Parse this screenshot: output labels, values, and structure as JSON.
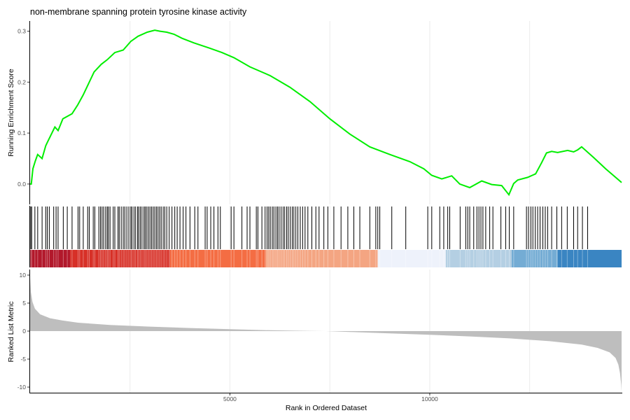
{
  "chart_data": {
    "type": "line",
    "title": "non-membrane spanning protein tyrosine kinase activity",
    "xlabel": "Rank in Ordered Dataset",
    "x_range": [
      0,
      14800
    ],
    "x_ticks": [
      5000,
      10000
    ],
    "x_tick_labels": [
      "5000",
      "10000"
    ],
    "grid": true,
    "es_panel": {
      "ylabel": "Running Enrichment Score",
      "ylim": [
        -0.04,
        0.32
      ],
      "y_ticks": [
        0.0,
        0.1,
        0.2,
        0.3
      ],
      "y_tick_labels": [
        "0.0",
        "0.1",
        "0.2",
        "0.3"
      ],
      "line_color": "#00ee00",
      "x": [
        0,
        30,
        70,
        130,
        190,
        300,
        390,
        420,
        620,
        700,
        820,
        1050,
        1190,
        1330,
        1500,
        1600,
        1780,
        1930,
        2120,
        2330,
        2520,
        2700,
        2930,
        3120,
        3250,
        3420,
        3600,
        3800,
        4100,
        4480,
        4800,
        5100,
        5500,
        6000,
        6500,
        7000,
        7500,
        8000,
        8500,
        9000,
        9500,
        9850,
        10050,
        10300,
        10550,
        10750,
        11000,
        11300,
        11550,
        11800,
        11980,
        12100,
        12200,
        12450,
        12650,
        12800,
        12920,
        13050,
        13200,
        13450,
        13600,
        13700,
        13800,
        14100,
        14400,
        14800
      ],
      "y": [
        0.0,
        0.0,
        0.03,
        0.045,
        0.058,
        0.05,
        0.075,
        0.08,
        0.112,
        0.105,
        0.128,
        0.138,
        0.155,
        0.175,
        0.203,
        0.22,
        0.235,
        0.244,
        0.258,
        0.263,
        0.28,
        0.29,
        0.298,
        0.302,
        0.3,
        0.298,
        0.294,
        0.286,
        0.277,
        0.267,
        0.258,
        0.248,
        0.23,
        0.213,
        0.19,
        0.162,
        0.128,
        0.098,
        0.073,
        0.058,
        0.044,
        0.03,
        0.017,
        0.01,
        0.016,
        0.0,
        -0.007,
        0.006,
        -0.001,
        -0.003,
        -0.021,
        0.001,
        0.008,
        0.013,
        0.02,
        0.042,
        0.061,
        0.064,
        0.062,
        0.066,
        0.063,
        0.067,
        0.073,
        0.052,
        0.03,
        0.003
      ]
    },
    "hits_panel": {
      "hit_color": "#000000",
      "hit_ranks": [
        15,
        40,
        120,
        190,
        300,
        390,
        430,
        480,
        590,
        650,
        700,
        830,
        930,
        1050,
        1200,
        1240,
        1330,
        1440,
        1480,
        1580,
        1620,
        1720,
        1760,
        1800,
        1840,
        1890,
        1930,
        1960,
        2000,
        2080,
        2120,
        2200,
        2230,
        2280,
        2330,
        2370,
        2420,
        2470,
        2520,
        2550,
        2600,
        2640,
        2690,
        2720,
        2760,
        2800,
        2850,
        2880,
        2920,
        2960,
        3000,
        3040,
        3080,
        3120,
        3160,
        3200,
        3240,
        3280,
        3330,
        3370,
        3420,
        3480,
        3550,
        3620,
        3680,
        3750,
        3830,
        3900,
        4000,
        4120,
        4200,
        4380,
        4430,
        4520,
        4600,
        4700,
        4760,
        5030,
        5100,
        5300,
        5430,
        5500,
        5660,
        5700,
        5800,
        5880,
        5930,
        5970,
        6010,
        6060,
        6100,
        6150,
        6190,
        6230,
        6280,
        6330,
        6370,
        6420,
        6460,
        6510,
        6560,
        6600,
        6650,
        6700,
        6760,
        6820,
        6880,
        6950,
        7050,
        7150,
        7230,
        7350,
        7450,
        7600,
        7780,
        7950,
        8100,
        8250,
        8500,
        8650,
        8700,
        8750,
        9050,
        9400,
        9950,
        10050,
        10250,
        10350,
        10450,
        10500,
        10760,
        10900,
        10950,
        11000,
        11100,
        11180,
        11230,
        11280,
        11330,
        11400,
        11500,
        11580,
        11780,
        11900,
        11990,
        12100,
        12420,
        12470,
        12530,
        12580,
        12640,
        12700,
        12760,
        12830,
        12890,
        12950,
        13050,
        13180,
        13300,
        13440,
        13600,
        13700,
        13820,
        13950
      ]
    },
    "color_bar": {
      "segments": [
        {
          "from": 0,
          "to": 1000,
          "color": "#b2182b"
        },
        {
          "from": 1000,
          "to": 3500,
          "color": "#d73027"
        },
        {
          "from": 3500,
          "to": 5900,
          "color": "#f46d43"
        },
        {
          "from": 5900,
          "to": 8700,
          "color": "#f4a582"
        },
        {
          "from": 8700,
          "to": 10400,
          "color": "#eef2fb"
        },
        {
          "from": 10400,
          "to": 12050,
          "color": "#b4cfe3"
        },
        {
          "from": 12050,
          "to": 13200,
          "color": "#74acd4"
        },
        {
          "from": 13200,
          "to": 14800,
          "color": "#3a85c2"
        }
      ]
    },
    "metric_panel": {
      "ylabel": "Ranked List Metric",
      "ylim": [
        -11,
        11
      ],
      "y_ticks": [
        10,
        5,
        0,
        -5,
        -10
      ],
      "y_tick_labels": [
        "10",
        "5",
        "0",
        "-5",
        "-10"
      ],
      "fill_color": "#bebebe",
      "x": [
        0,
        20,
        60,
        120,
        250,
        500,
        800,
        1200,
        2000,
        3000,
        4000,
        5000,
        6000,
        7000,
        7400,
        8000,
        9000,
        10000,
        11000,
        12000,
        13000,
        13800,
        14200,
        14500,
        14650,
        14720,
        14760,
        14790,
        14800
      ],
      "y": [
        9.5,
        7.0,
        5.2,
        4.0,
        3.0,
        2.3,
        1.9,
        1.5,
        1.1,
        0.8,
        0.55,
        0.35,
        0.15,
        0.03,
        0.0,
        -0.15,
        -0.4,
        -0.65,
        -0.95,
        -1.3,
        -1.8,
        -2.4,
        -3.0,
        -3.8,
        -4.8,
        -6.0,
        -7.5,
        -9.5,
        -10.8
      ]
    }
  }
}
